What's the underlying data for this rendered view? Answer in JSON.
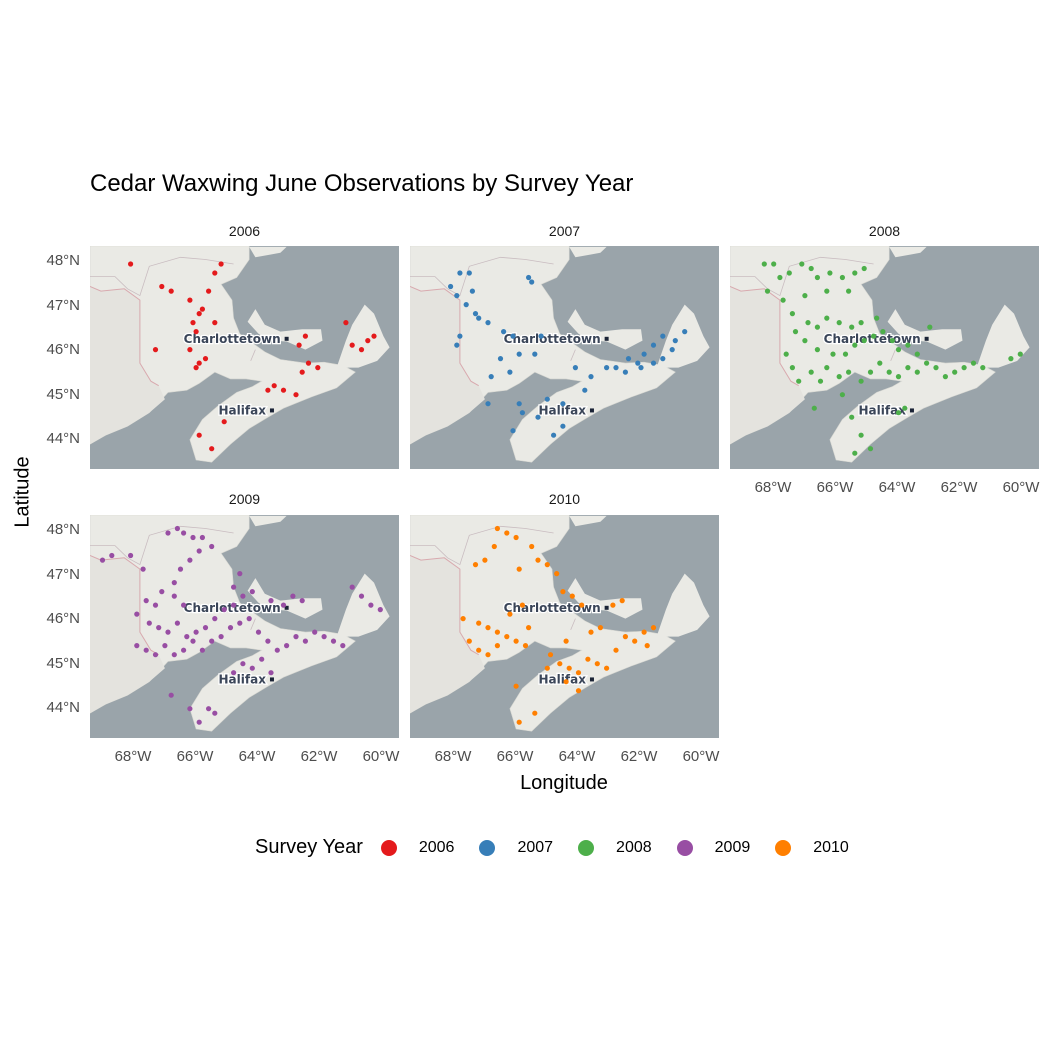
{
  "title": "Cedar Waxwing June Observations by Survey Year",
  "axes": {
    "x_title": "Longitude",
    "y_title": "Latitude",
    "x_ticks": [
      "68°W",
      "66°W",
      "64°W",
      "62°W",
      "60°W"
    ],
    "y_ticks": [
      "48°N",
      "47°N",
      "46°N",
      "45°N",
      "44°N"
    ]
  },
  "map_labels": {
    "city1": "Charlottetown",
    "city2": "Halifax"
  },
  "legend": {
    "title": "Survey Year",
    "items": [
      {
        "label": "2006",
        "color": "#e41a1c"
      },
      {
        "label": "2007",
        "color": "#377eb8"
      },
      {
        "label": "2008",
        "color": "#4daf4a"
      },
      {
        "label": "2009",
        "color": "#984ea3"
      },
      {
        "label": "2010",
        "color": "#ff7f00"
      }
    ]
  },
  "chart_data": {
    "type": "scatter",
    "title": "Cedar Waxwing June Observations by Survey Year",
    "xlabel": "Longitude",
    "ylabel": "Latitude",
    "xlim": [
      -69.4,
      -59.5
    ],
    "ylim": [
      43.35,
      48.3
    ],
    "grid": false,
    "legend_position": "bottom",
    "panels": [
      {
        "name": "2006",
        "color": "#e41a1c",
        "points": [
          [
            -68.1,
            47.9
          ],
          [
            -67.1,
            47.4
          ],
          [
            -66.8,
            47.3
          ],
          [
            -66.2,
            47.1
          ],
          [
            -65.6,
            47.3
          ],
          [
            -65.2,
            47.9
          ],
          [
            -65.4,
            47.7
          ],
          [
            -65.9,
            46.8
          ],
          [
            -66.1,
            46.6
          ],
          [
            -65.8,
            46.9
          ],
          [
            -65.4,
            46.6
          ],
          [
            -66.0,
            46.4
          ],
          [
            -66.2,
            46.0
          ],
          [
            -67.3,
            46.0
          ],
          [
            -65.9,
            45.7
          ],
          [
            -66.0,
            45.6
          ],
          [
            -65.7,
            45.8
          ],
          [
            -63.7,
            45.1
          ],
          [
            -63.5,
            45.2
          ],
          [
            -63.2,
            45.1
          ],
          [
            -62.8,
            45.0
          ],
          [
            -62.6,
            45.5
          ],
          [
            -62.4,
            45.7
          ],
          [
            -62.1,
            45.6
          ],
          [
            -62.5,
            46.3
          ],
          [
            -62.7,
            46.1
          ],
          [
            -61.2,
            46.6
          ],
          [
            -61.0,
            46.1
          ],
          [
            -60.7,
            46.0
          ],
          [
            -60.5,
            46.2
          ],
          [
            -60.3,
            46.3
          ],
          [
            -65.1,
            44.4
          ],
          [
            -65.9,
            44.1
          ],
          [
            -65.5,
            43.8
          ]
        ]
      },
      {
        "name": "2007",
        "color": "#377eb8",
        "points": [
          [
            -68.1,
            47.4
          ],
          [
            -67.8,
            47.7
          ],
          [
            -67.5,
            47.7
          ],
          [
            -67.9,
            47.2
          ],
          [
            -67.6,
            47.0
          ],
          [
            -67.4,
            47.3
          ],
          [
            -67.2,
            46.7
          ],
          [
            -66.9,
            46.6
          ],
          [
            -67.3,
            46.8
          ],
          [
            -67.9,
            46.1
          ],
          [
            -67.8,
            46.3
          ],
          [
            -65.5,
            47.5
          ],
          [
            -65.6,
            47.6
          ],
          [
            -66.4,
            46.4
          ],
          [
            -66.1,
            46.3
          ],
          [
            -65.9,
            45.9
          ],
          [
            -65.4,
            45.9
          ],
          [
            -65.2,
            46.3
          ],
          [
            -66.5,
            45.8
          ],
          [
            -66.2,
            45.5
          ],
          [
            -66.8,
            45.4
          ],
          [
            -66.9,
            44.8
          ],
          [
            -65.9,
            44.8
          ],
          [
            -65.3,
            44.5
          ],
          [
            -65.0,
            44.9
          ],
          [
            -64.5,
            44.8
          ],
          [
            -64.8,
            44.1
          ],
          [
            -64.5,
            44.3
          ],
          [
            -63.8,
            45.1
          ],
          [
            -64.1,
            45.6
          ],
          [
            -63.6,
            45.4
          ],
          [
            -62.8,
            45.6
          ],
          [
            -62.5,
            45.5
          ],
          [
            -62.1,
            45.7
          ],
          [
            -61.9,
            45.9
          ],
          [
            -61.6,
            45.7
          ],
          [
            -61.3,
            45.8
          ],
          [
            -61.0,
            46.0
          ],
          [
            -60.9,
            46.2
          ],
          [
            -60.6,
            46.4
          ],
          [
            -61.3,
            46.3
          ],
          [
            -61.6,
            46.1
          ],
          [
            -62.0,
            45.6
          ],
          [
            -62.4,
            45.8
          ],
          [
            -63.1,
            45.6
          ],
          [
            -65.8,
            44.6
          ],
          [
            -66.1,
            44.2
          ]
        ]
      },
      {
        "name": "2008",
        "color": "#4daf4a",
        "points": [
          [
            -68.3,
            47.9
          ],
          [
            -68.0,
            47.9
          ],
          [
            -67.8,
            47.6
          ],
          [
            -68.2,
            47.3
          ],
          [
            -67.5,
            47.7
          ],
          [
            -67.1,
            47.9
          ],
          [
            -66.8,
            47.8
          ],
          [
            -66.6,
            47.6
          ],
          [
            -66.2,
            47.7
          ],
          [
            -65.8,
            47.6
          ],
          [
            -65.4,
            47.7
          ],
          [
            -65.1,
            47.8
          ],
          [
            -65.6,
            47.3
          ],
          [
            -66.3,
            47.3
          ],
          [
            -67.0,
            47.2
          ],
          [
            -67.7,
            47.1
          ],
          [
            -67.4,
            46.8
          ],
          [
            -66.9,
            46.6
          ],
          [
            -66.6,
            46.5
          ],
          [
            -66.3,
            46.7
          ],
          [
            -65.9,
            46.6
          ],
          [
            -65.5,
            46.5
          ],
          [
            -65.2,
            46.6
          ],
          [
            -67.3,
            46.4
          ],
          [
            -67.0,
            46.2
          ],
          [
            -66.6,
            46.0
          ],
          [
            -66.1,
            45.9
          ],
          [
            -65.7,
            45.9
          ],
          [
            -65.4,
            46.1
          ],
          [
            -65.1,
            46.2
          ],
          [
            -64.8,
            46.3
          ],
          [
            -64.5,
            46.4
          ],
          [
            -64.2,
            46.2
          ],
          [
            -64.0,
            46.0
          ],
          [
            -63.7,
            46.1
          ],
          [
            -63.4,
            45.9
          ],
          [
            -67.6,
            45.9
          ],
          [
            -67.4,
            45.6
          ],
          [
            -67.2,
            45.3
          ],
          [
            -66.8,
            45.5
          ],
          [
            -66.5,
            45.3
          ],
          [
            -66.3,
            45.6
          ],
          [
            -65.9,
            45.4
          ],
          [
            -65.6,
            45.5
          ],
          [
            -65.2,
            45.3
          ],
          [
            -64.9,
            45.5
          ],
          [
            -64.6,
            45.7
          ],
          [
            -64.3,
            45.5
          ],
          [
            -64.0,
            45.4
          ],
          [
            -63.7,
            45.6
          ],
          [
            -63.4,
            45.5
          ],
          [
            -63.1,
            45.7
          ],
          [
            -62.8,
            45.6
          ],
          [
            -62.5,
            45.4
          ],
          [
            -62.2,
            45.5
          ],
          [
            -61.9,
            45.6
          ],
          [
            -61.6,
            45.7
          ],
          [
            -61.3,
            45.6
          ],
          [
            -60.4,
            45.8
          ],
          [
            -60.1,
            45.9
          ],
          [
            -63.0,
            46.5
          ],
          [
            -64.7,
            46.7
          ],
          [
            -65.8,
            45.0
          ],
          [
            -66.7,
            44.7
          ],
          [
            -65.5,
            44.5
          ],
          [
            -65.2,
            44.1
          ],
          [
            -65.4,
            43.7
          ],
          [
            -64.9,
            43.8
          ],
          [
            -63.8,
            44.7
          ],
          [
            -64.0,
            44.6
          ]
        ]
      },
      {
        "name": "2009",
        "color": "#984ea3",
        "points": [
          [
            -69.0,
            47.3
          ],
          [
            -68.7,
            47.4
          ],
          [
            -68.1,
            47.4
          ],
          [
            -67.7,
            47.1
          ],
          [
            -66.9,
            47.9
          ],
          [
            -66.6,
            48.0
          ],
          [
            -66.4,
            47.9
          ],
          [
            -66.1,
            47.8
          ],
          [
            -65.8,
            47.8
          ],
          [
            -65.5,
            47.6
          ],
          [
            -65.9,
            47.5
          ],
          [
            -66.2,
            47.3
          ],
          [
            -66.5,
            47.1
          ],
          [
            -66.7,
            46.8
          ],
          [
            -67.1,
            46.6
          ],
          [
            -67.3,
            46.3
          ],
          [
            -67.6,
            46.4
          ],
          [
            -67.9,
            46.1
          ],
          [
            -67.5,
            45.9
          ],
          [
            -67.2,
            45.8
          ],
          [
            -66.9,
            45.7
          ],
          [
            -66.6,
            45.9
          ],
          [
            -66.3,
            45.6
          ],
          [
            -66.0,
            45.7
          ],
          [
            -65.7,
            45.8
          ],
          [
            -65.4,
            46.0
          ],
          [
            -65.1,
            46.2
          ],
          [
            -64.8,
            46.3
          ],
          [
            -64.5,
            46.5
          ],
          [
            -64.2,
            46.6
          ],
          [
            -64.8,
            46.7
          ],
          [
            -64.6,
            47.0
          ],
          [
            -66.4,
            46.3
          ],
          [
            -66.7,
            46.5
          ],
          [
            -67.9,
            45.4
          ],
          [
            -67.6,
            45.3
          ],
          [
            -67.3,
            45.2
          ],
          [
            -67.0,
            45.4
          ],
          [
            -66.7,
            45.2
          ],
          [
            -66.4,
            45.3
          ],
          [
            -66.1,
            45.5
          ],
          [
            -65.8,
            45.3
          ],
          [
            -65.5,
            45.5
          ],
          [
            -65.2,
            45.6
          ],
          [
            -64.9,
            45.8
          ],
          [
            -64.6,
            45.9
          ],
          [
            -64.3,
            46.0
          ],
          [
            -64.0,
            45.7
          ],
          [
            -63.7,
            45.5
          ],
          [
            -63.4,
            45.3
          ],
          [
            -63.1,
            45.4
          ],
          [
            -62.8,
            45.6
          ],
          [
            -62.5,
            45.5
          ],
          [
            -62.2,
            45.7
          ],
          [
            -61.9,
            45.6
          ],
          [
            -61.6,
            45.5
          ],
          [
            -61.3,
            45.4
          ],
          [
            -63.2,
            46.3
          ],
          [
            -62.9,
            46.5
          ],
          [
            -62.6,
            46.4
          ],
          [
            -63.6,
            46.4
          ],
          [
            -61.0,
            46.7
          ],
          [
            -60.7,
            46.5
          ],
          [
            -60.4,
            46.3
          ],
          [
            -60.1,
            46.2
          ],
          [
            -63.9,
            45.1
          ],
          [
            -64.2,
            44.9
          ],
          [
            -64.5,
            45.0
          ],
          [
            -64.8,
            44.8
          ],
          [
            -63.6,
            44.8
          ],
          [
            -66.8,
            44.3
          ],
          [
            -66.2,
            44.0
          ],
          [
            -65.9,
            43.7
          ],
          [
            -65.6,
            44.0
          ],
          [
            -65.4,
            43.9
          ]
        ]
      },
      {
        "name": "2010",
        "color": "#ff7f00",
        "points": [
          [
            -66.6,
            48.0
          ],
          [
            -66.3,
            47.9
          ],
          [
            -66.0,
            47.8
          ],
          [
            -65.5,
            47.6
          ],
          [
            -66.7,
            47.6
          ],
          [
            -67.3,
            47.2
          ],
          [
            -67.0,
            47.3
          ],
          [
            -65.9,
            47.1
          ],
          [
            -65.3,
            47.3
          ],
          [
            -65.0,
            47.2
          ],
          [
            -64.7,
            47.0
          ],
          [
            -64.5,
            46.6
          ],
          [
            -64.2,
            46.5
          ],
          [
            -63.9,
            46.3
          ],
          [
            -65.8,
            46.3
          ],
          [
            -66.2,
            46.1
          ],
          [
            -67.7,
            46.0
          ],
          [
            -67.2,
            45.9
          ],
          [
            -66.9,
            45.8
          ],
          [
            -66.6,
            45.7
          ],
          [
            -66.3,
            45.6
          ],
          [
            -66.0,
            45.5
          ],
          [
            -65.7,
            45.4
          ],
          [
            -67.5,
            45.5
          ],
          [
            -67.2,
            45.3
          ],
          [
            -66.9,
            45.2
          ],
          [
            -66.6,
            45.4
          ],
          [
            -65.6,
            45.8
          ],
          [
            -64.9,
            45.2
          ],
          [
            -64.6,
            45.0
          ],
          [
            -64.3,
            44.9
          ],
          [
            -64.0,
            44.8
          ],
          [
            -63.7,
            45.1
          ],
          [
            -63.4,
            45.0
          ],
          [
            -63.1,
            44.9
          ],
          [
            -62.8,
            45.3
          ],
          [
            -62.5,
            45.6
          ],
          [
            -62.2,
            45.5
          ],
          [
            -61.9,
            45.7
          ],
          [
            -61.6,
            45.8
          ],
          [
            -61.8,
            45.4
          ],
          [
            -62.9,
            46.3
          ],
          [
            -62.6,
            46.4
          ],
          [
            -63.3,
            45.8
          ],
          [
            -63.6,
            45.7
          ],
          [
            -64.4,
            45.5
          ],
          [
            -65.0,
            44.9
          ],
          [
            -64.4,
            44.6
          ],
          [
            -64.0,
            44.4
          ],
          [
            -65.4,
            43.9
          ],
          [
            -65.9,
            43.7
          ],
          [
            -66.0,
            44.5
          ]
        ]
      }
    ]
  }
}
